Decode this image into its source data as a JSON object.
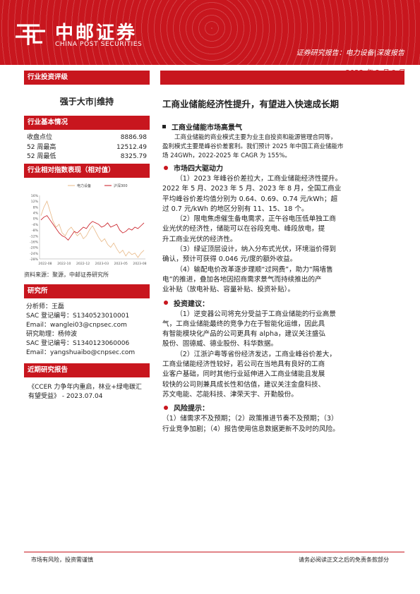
{
  "header": {
    "logo_cn": "中邮证券",
    "logo_en": "CHINA POST SECURITIES",
    "report_type": "证券研究报告：电力设备|深度报告",
    "date": "2023 年 8 月 6 日"
  },
  "left": {
    "rating_head": "行业投资评级",
    "rating": "强于大市|维持",
    "basic_head": "行业基本情况",
    "basic": [
      {
        "label": "收盘点位",
        "value": "8886.98"
      },
      {
        "label": "52 周最高",
        "value": "12512.49"
      },
      {
        "label": "52 周最低",
        "value": "8325.79"
      }
    ],
    "perf_head": "行业相对指数表现（相对值）",
    "source": "资料来源：聚源，中邮证券研究所",
    "analyst_head": "研究所",
    "analyst_lines": [
      "分析师：王磊",
      "SAC 登记编号：S1340523010001",
      "Email：wanglei03@cnpsec.com",
      "研究助理：杨帅波",
      "SAC 登记编号：S1340123060006",
      "Email：yangshuaibo@cnpsec.com"
    ],
    "recent_head": "近期研究报告",
    "recent_lines": [
      "《CCER 力争年内重启，林业+绿电碳汇",
      "有望受益》 - 2023.07.04"
    ]
  },
  "chart_data": {
    "type": "line",
    "legend": [
      "电力设备",
      "沪深300"
    ],
    "legend_placement": "top",
    "x_ticks": [
      "2022-08",
      "2022-10",
      "2022-12",
      "2023-03",
      "2023-05",
      "2023-08"
    ],
    "y_ticks": [
      "16%",
      "12%",
      "8%",
      "4%",
      "0%",
      "-4%",
      "-8%",
      "-12%",
      "-16%",
      "-20%",
      "-24%",
      "-28%"
    ],
    "ylim": [
      -28,
      16
    ],
    "series": [
      {
        "name": "电力设备",
        "color": "#e8b886",
        "values": [
          2,
          8,
          12,
          5,
          -2,
          -6,
          -4,
          -10,
          -12,
          -8,
          -6,
          -9,
          -12,
          -10,
          -14,
          -12,
          -8,
          -5,
          -9,
          -13,
          -16,
          -14,
          -18,
          -20,
          -17,
          -21,
          -24,
          -22,
          -26,
          -23,
          -25,
          -24,
          -27,
          -24,
          -22
        ]
      },
      {
        "name": "沪深300",
        "color": "#c8161e",
        "values": [
          -1,
          1,
          2,
          -1,
          -4,
          -7,
          -10,
          -12,
          -13,
          -15,
          -12,
          -9,
          -10,
          -8,
          -6,
          -7,
          -4,
          -2,
          -3,
          -4,
          -6,
          -5,
          -3,
          -6,
          -5,
          -4,
          -8,
          -10,
          -9,
          -7,
          -8,
          -6,
          -7,
          -5,
          -3
        ]
      }
    ]
  },
  "main": {
    "title": "工商业储能经济性提升，有望进入快速成长期",
    "s1_head": "工商业储能市场高景气",
    "s1_lines": [
      "工商业储能的商业模式主要为业主自投资和能源管理合同等，",
      "盈利模式主要是峰谷价差套利。我们预计 2025 年中国工商业储能市",
      "场 24GWh，2022-2025 年 CAGR 为 155%。"
    ],
    "s2_head": "市场四大驱动力",
    "s2_paras": [
      [
        "（1）2023 年峰谷价差拉大，工商业储能经济性提升。",
        "2022 年 5 月、2023 年 5 月、2023 年 8 月，全国工商业",
        "平均峰谷价差均值分别为 0.64、0.69、0.74 元/kWh；超",
        "过 0.7 元/kWh 的地区分别有 11、15、18 个。"
      ],
      [
        "（2）限电焦虑催生备电需求，正午谷电压低单独工商",
        "业光伏的经济性，储能可以在谷段充电、峰段放电，提",
        "升工商业光伏的经济性。"
      ],
      [
        "（3）绿证顶层设计，纳入分布式光伏，环境溢价得到",
        "确认，预计可获得 0.046 元/度的额外收益。"
      ],
      [
        "（4）输配电价改革逐步理顺“过网费”，助力“隔墙售",
        "电”的推进，叠加各地因招商需求景气而持续推出的产",
        "业补贴（放电补贴、容量补贴、投资补贴）。"
      ]
    ],
    "s3_head": "投资建议：",
    "s3_paras": [
      [
        "（1）逆变器公司将充分受益于工商业储能的行业高景",
        "气，工商业储能最终的竞争力在于智能化运维，因此具",
        "有智能模块化产品的公司更具有 alpha，建议关注盛弘",
        "股份、固德威、德业股份、科华数据。"
      ],
      [
        "（2）江浙沪粤等省份经济发达，工商业峰谷价差大，",
        "工商业储能经济性较好，若公司在当地具有良好的工商",
        "业客户基础，同时其他行业延伸进入工商业储能且发展",
        "较快的公司则兼具成长性和估值，建议关注金盘科技、",
        "苏文电能、芯能科技、津荣天宇、开勤股份。"
      ]
    ],
    "s4_head": "风险提示：",
    "s4_lines": [
      "（1）储需求不及预期；（2）政策推进节奏不及预期；（3）",
      "行业竞争加剧；（4）报告使用信息数据更新不及时的风险。"
    ]
  },
  "footer": {
    "left": "市场有风险，投资需谨慎",
    "right": "请务必阅读正文之后的免责条款部分"
  }
}
